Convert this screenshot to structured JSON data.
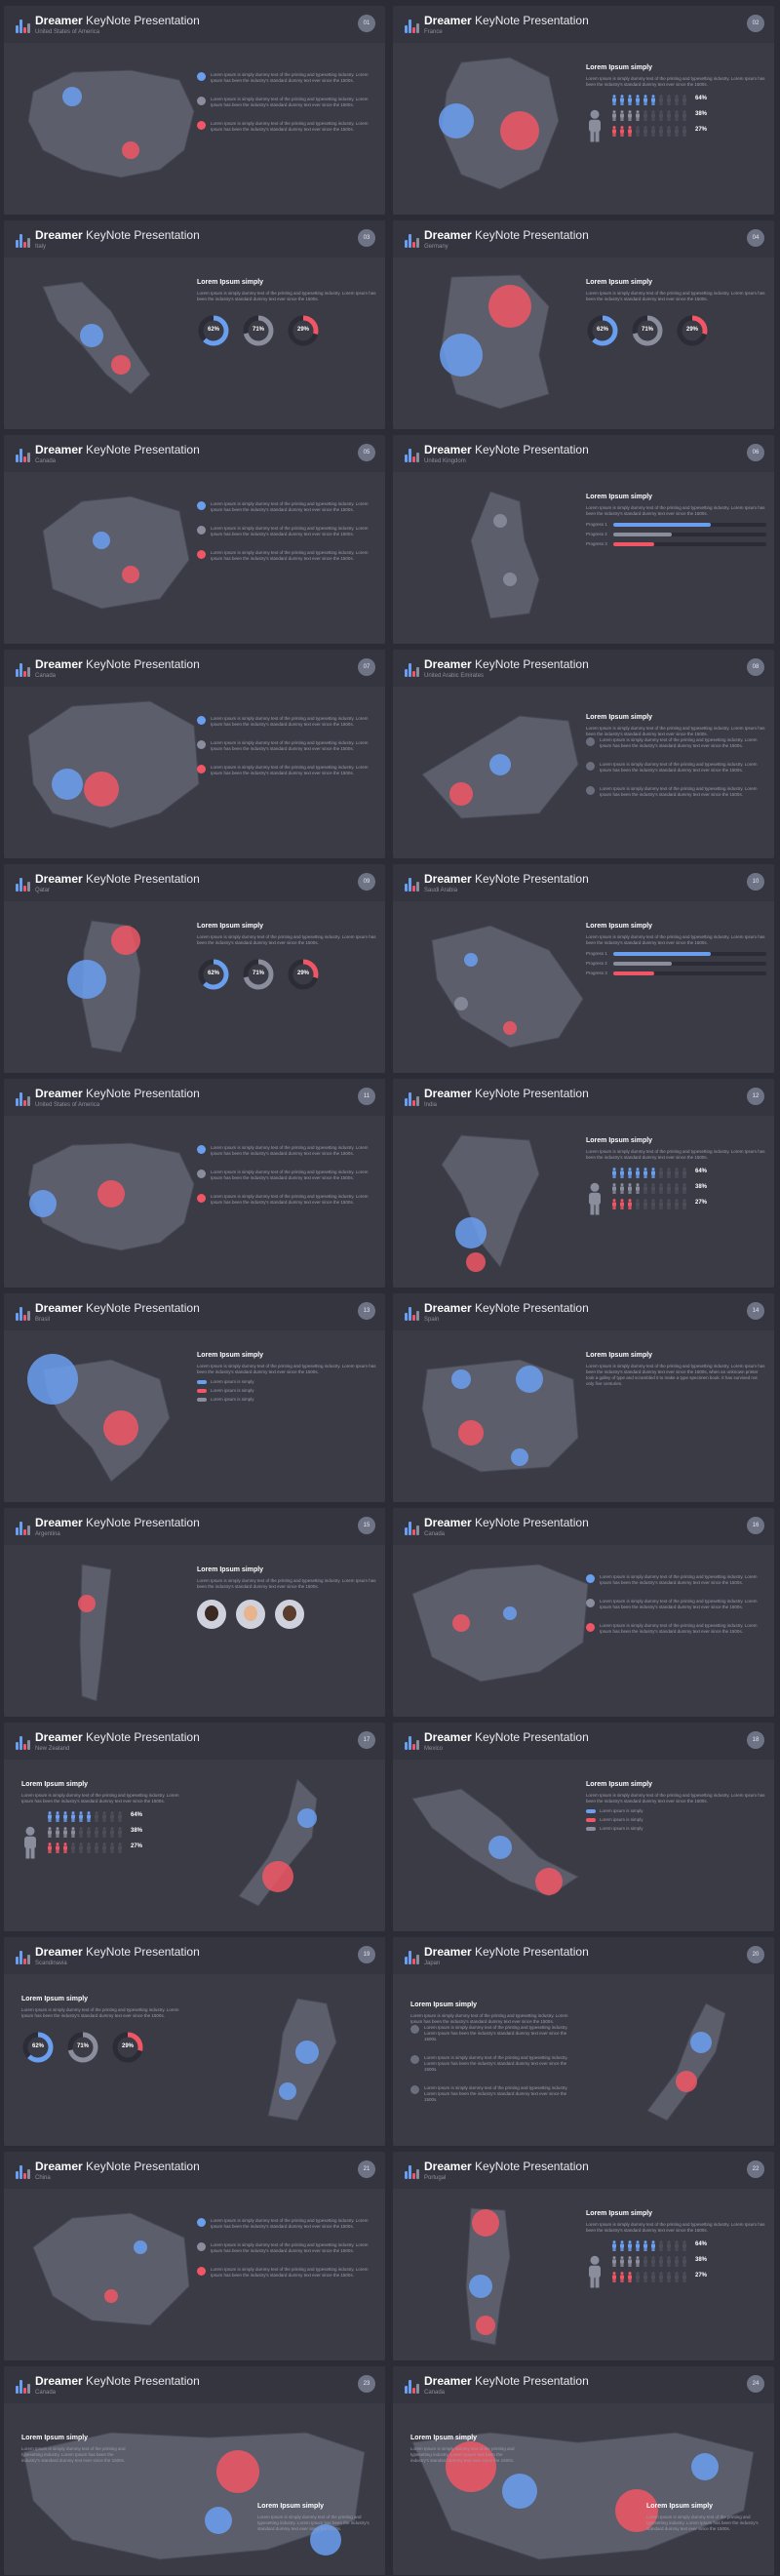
{
  "colors": {
    "blue": "#6a9ff0",
    "red": "#f05665",
    "gray": "#8a8d9c",
    "land": "#5c5e6b",
    "dark": "#2b2c35"
  },
  "brand_bold": "Dreamer",
  "brand_rest": "KeyNote Presentation",
  "lorem_title": "Lorem Ipsum simply",
  "lorem_short": "Lorem Ipsum is simply dummy text of the printing and typesetting industry. Lorem Ipsum has been the industry's standard dummy text ever since the 1500s.",
  "lorem_long": "Lorem Ipsum is simply dummy text of the printing and typesetting industry. Lorem Ipsum has been the industry's standard dummy text ever since the 1500s, when an unknown printer took a galley of type and scrambled it to make a type specimen book. It has survived not only five centuries.",
  "percentages": {
    "p1": "64%",
    "p2": "38%",
    "p3": "27%"
  },
  "donuts": {
    "d1": "62%",
    "d2": "71%",
    "d3": "29%"
  },
  "bar_labels": {
    "b1": "Progress 1",
    "b2": "Progress 2",
    "b3": "Progress 3"
  },
  "legend_labels": {
    "l1": "Lorem ipsum is simply",
    "l2": "Lorem ipsum is simply",
    "l3": "Lorem ipsum is simply"
  },
  "slides": [
    {
      "country": "United States of America",
      "page": "01"
    },
    {
      "country": "France",
      "page": "02"
    },
    {
      "country": "Italy",
      "page": "03"
    },
    {
      "country": "Germany",
      "page": "04"
    },
    {
      "country": "Canada",
      "page": "05"
    },
    {
      "country": "United Kingdom",
      "page": "06"
    },
    {
      "country": "Canada",
      "page": "07"
    },
    {
      "country": "United Arabic Emirates",
      "page": "08"
    },
    {
      "country": "Qatar",
      "page": "09"
    },
    {
      "country": "Saudi Arabia",
      "page": "10"
    },
    {
      "country": "United States of America",
      "page": "11"
    },
    {
      "country": "India",
      "page": "12"
    },
    {
      "country": "Brasil",
      "page": "13"
    },
    {
      "country": "Spain",
      "page": "14"
    },
    {
      "country": "Argentina",
      "page": "15"
    },
    {
      "country": "Canada",
      "page": "16"
    },
    {
      "country": "New Zealand",
      "page": "17"
    },
    {
      "country": "Mexico",
      "page": "18"
    },
    {
      "country": "Scandinavia",
      "page": "19"
    },
    {
      "country": "Japan",
      "page": "20"
    },
    {
      "country": "China",
      "page": "21"
    },
    {
      "country": "Portugal",
      "page": "22"
    },
    {
      "country": "Canada",
      "page": "23"
    },
    {
      "country": "Canada",
      "page": "24"
    }
  ]
}
